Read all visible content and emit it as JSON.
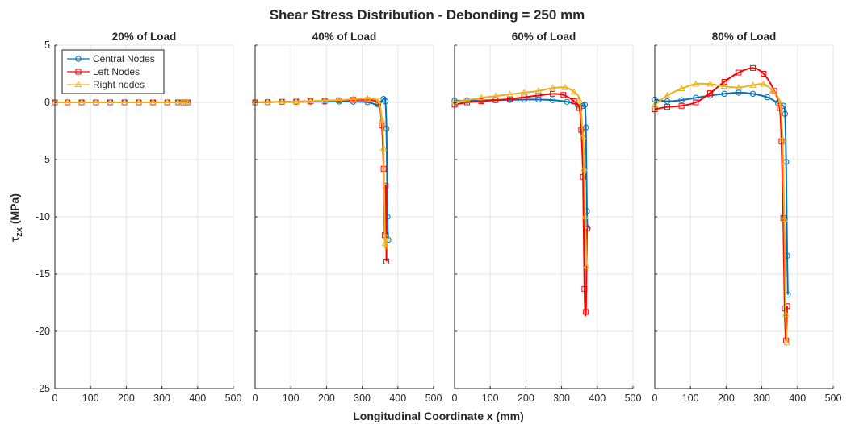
{
  "figure": {
    "title": "Shear Stress Distribution - Debonding = 250 mm",
    "xlabel": "Longitudinal Coordinate x (mm)",
    "ylabel_main": "τ",
    "ylabel_sub": "zx",
    "ylabel_unit": " (MPa)"
  },
  "legend": {
    "placement": "top-left of first panel",
    "items": [
      {
        "name": "Central Nodes",
        "color": "#0072BD",
        "marker": "circle"
      },
      {
        "name": "Left Nodes",
        "color": "#FF0000",
        "marker": "square"
      },
      {
        "name": "Right nodes",
        "color": "#EDB120",
        "marker": "triangle"
      }
    ]
  },
  "colors": {
    "central": "#0072BD",
    "left": "#FF0000",
    "right": "#EDB120",
    "grid": "#E6E6E6",
    "axis": "#262626"
  },
  "chart_data": [
    {
      "type": "line",
      "title": "20% of Load",
      "xlim": [
        0,
        500
      ],
      "ylim": [
        -25,
        5
      ],
      "xticks": [
        0,
        100,
        200,
        300,
        400,
        500
      ],
      "yticks": [
        -25,
        -20,
        -15,
        -10,
        -5,
        0,
        5
      ],
      "grid": true,
      "series": [
        {
          "name": "Central Nodes",
          "points": [
            [
              0,
              0
            ],
            [
              35,
              0
            ],
            [
              75,
              0
            ],
            [
              115,
              0
            ],
            [
              155,
              0
            ],
            [
              195,
              0
            ],
            [
              235,
              0
            ],
            [
              275,
              0
            ],
            [
              315,
              0
            ],
            [
              345,
              0
            ],
            [
              355,
              0
            ],
            [
              362,
              0
            ],
            [
              368,
              0
            ],
            [
              373,
              0
            ]
          ]
        },
        {
          "name": "Left Nodes",
          "points": [
            [
              0,
              0
            ],
            [
              35,
              0
            ],
            [
              75,
              0
            ],
            [
              115,
              0
            ],
            [
              155,
              0
            ],
            [
              195,
              0
            ],
            [
              235,
              0
            ],
            [
              275,
              0
            ],
            [
              315,
              0
            ],
            [
              345,
              0
            ],
            [
              355,
              0
            ],
            [
              362,
              0
            ],
            [
              368,
              0
            ],
            [
              373,
              0
            ]
          ]
        },
        {
          "name": "Right nodes",
          "points": [
            [
              0,
              0
            ],
            [
              35,
              0
            ],
            [
              75,
              0
            ],
            [
              115,
              0
            ],
            [
              155,
              0
            ],
            [
              195,
              0
            ],
            [
              235,
              0
            ],
            [
              275,
              0
            ],
            [
              315,
              0
            ],
            [
              345,
              0
            ],
            [
              355,
              0
            ],
            [
              362,
              0
            ],
            [
              368,
              0
            ],
            [
              373,
              0
            ]
          ]
        }
      ]
    },
    {
      "type": "line",
      "title": "40% of Load",
      "xlim": [
        0,
        500
      ],
      "ylim": [
        -25,
        5
      ],
      "xticks": [
        0,
        100,
        200,
        300,
        400,
        500
      ],
      "yticks": [
        -25,
        -20,
        -15,
        -10,
        -5,
        0,
        5
      ],
      "grid": true,
      "series": [
        {
          "name": "Central Nodes",
          "points": [
            [
              0,
              0
            ],
            [
              35,
              0.02
            ],
            [
              75,
              0.04
            ],
            [
              115,
              0.05
            ],
            [
              155,
              0.06
            ],
            [
              195,
              0.07
            ],
            [
              235,
              0.08
            ],
            [
              275,
              0.06
            ],
            [
              315,
              0.02
            ],
            [
              345,
              -0.2
            ],
            [
              360,
              0.3
            ],
            [
              365,
              0.1
            ],
            [
              368,
              -2.3
            ],
            [
              371,
              -10.0
            ],
            [
              373,
              -12.0
            ]
          ]
        },
        {
          "name": "Left Nodes",
          "points": [
            [
              0,
              0
            ],
            [
              35,
              0.02
            ],
            [
              75,
              0.05
            ],
            [
              115,
              0.07
            ],
            [
              155,
              0.1
            ],
            [
              195,
              0.14
            ],
            [
              235,
              0.18
            ],
            [
              275,
              0.22
            ],
            [
              315,
              0.2
            ],
            [
              345,
              -0.1
            ],
            [
              355,
              -2.0
            ],
            [
              360,
              -5.8
            ],
            [
              363,
              -11.6
            ],
            [
              366,
              -7.3
            ],
            [
              368,
              -13.9
            ]
          ]
        },
        {
          "name": "Right nodes",
          "points": [
            [
              0,
              0
            ],
            [
              35,
              0.02
            ],
            [
              75,
              0.05
            ],
            [
              115,
              0.08
            ],
            [
              155,
              0.12
            ],
            [
              195,
              0.16
            ],
            [
              235,
              0.2
            ],
            [
              275,
              0.28
            ],
            [
              315,
              0.32
            ],
            [
              345,
              0.1
            ],
            [
              355,
              -1.5
            ],
            [
              360,
              -4.0
            ],
            [
              364,
              -12.3
            ],
            [
              368,
              -11.8
            ]
          ]
        }
      ]
    },
    {
      "type": "line",
      "title": "60% of Load",
      "xlim": [
        0,
        500
      ],
      "ylim": [
        -25,
        5
      ],
      "xticks": [
        0,
        100,
        200,
        300,
        400,
        500
      ],
      "yticks": [
        -25,
        -20,
        -15,
        -10,
        -5,
        0,
        5
      ],
      "grid": true,
      "series": [
        {
          "name": "Central Nodes",
          "points": [
            [
              0,
              0.15
            ],
            [
              35,
              0.15
            ],
            [
              75,
              0.18
            ],
            [
              115,
              0.2
            ],
            [
              155,
              0.22
            ],
            [
              195,
              0.25
            ],
            [
              235,
              0.25
            ],
            [
              275,
              0.2
            ],
            [
              315,
              0.05
            ],
            [
              345,
              -0.2
            ],
            [
              360,
              -0.3
            ],
            [
              365,
              -0.2
            ],
            [
              368,
              -2.2
            ],
            [
              371,
              -9.5
            ],
            [
              373,
              -11.0
            ]
          ]
        },
        {
          "name": "Left Nodes",
          "points": [
            [
              0,
              -0.2
            ],
            [
              35,
              0.0
            ],
            [
              75,
              0.1
            ],
            [
              115,
              0.2
            ],
            [
              155,
              0.3
            ],
            [
              195,
              0.45
            ],
            [
              235,
              0.6
            ],
            [
              275,
              0.75
            ],
            [
              305,
              0.65
            ],
            [
              335,
              0.1
            ],
            [
              350,
              -0.5
            ],
            [
              355,
              -2.4
            ],
            [
              360,
              -6.5
            ],
            [
              364,
              -16.3
            ],
            [
              368,
              -18.3
            ],
            [
              371,
              -11.0
            ]
          ]
        },
        {
          "name": "Right nodes",
          "points": [
            [
              0,
              0.05
            ],
            [
              35,
              0.2
            ],
            [
              75,
              0.4
            ],
            [
              115,
              0.55
            ],
            [
              155,
              0.7
            ],
            [
              195,
              0.85
            ],
            [
              235,
              1.0
            ],
            [
              275,
              1.25
            ],
            [
              310,
              1.3
            ],
            [
              335,
              0.9
            ],
            [
              350,
              0.2
            ],
            [
              360,
              -3.0
            ],
            [
              363,
              -5.8
            ],
            [
              366,
              -10.0
            ],
            [
              370,
              -14.3
            ]
          ]
        }
      ]
    },
    {
      "type": "line",
      "title": "80% of Load",
      "xlim": [
        0,
        500
      ],
      "ylim": [
        -25,
        5
      ],
      "xticks": [
        0,
        100,
        200,
        300,
        400,
        500
      ],
      "yticks": [
        -25,
        -20,
        -15,
        -10,
        -5,
        0,
        5
      ],
      "grid": true,
      "series": [
        {
          "name": "Central Nodes",
          "points": [
            [
              0,
              0.25
            ],
            [
              35,
              0.1
            ],
            [
              75,
              0.2
            ],
            [
              115,
              0.4
            ],
            [
              155,
              0.6
            ],
            [
              195,
              0.75
            ],
            [
              235,
              0.85
            ],
            [
              275,
              0.75
            ],
            [
              315,
              0.45
            ],
            [
              345,
              -0.05
            ],
            [
              360,
              -0.3
            ],
            [
              365,
              -1.0
            ],
            [
              368,
              -5.2
            ],
            [
              371,
              -13.4
            ],
            [
              373,
              -16.8
            ]
          ]
        },
        {
          "name": "Left Nodes",
          "points": [
            [
              0,
              -0.6
            ],
            [
              35,
              -0.4
            ],
            [
              75,
              -0.3
            ],
            [
              115,
              0.0
            ],
            [
              155,
              0.8
            ],
            [
              195,
              1.8
            ],
            [
              235,
              2.6
            ],
            [
              275,
              3.0
            ],
            [
              305,
              2.5
            ],
            [
              335,
              1.0
            ],
            [
              350,
              -0.5
            ],
            [
              355,
              -3.4
            ],
            [
              360,
              -10.1
            ],
            [
              364,
              -18.0
            ],
            [
              368,
              -20.8
            ],
            [
              371,
              -17.8
            ]
          ]
        },
        {
          "name": "Right nodes",
          "points": [
            [
              0,
              -0.2
            ],
            [
              35,
              0.6
            ],
            [
              75,
              1.2
            ],
            [
              115,
              1.6
            ],
            [
              155,
              1.6
            ],
            [
              195,
              1.4
            ],
            [
              235,
              1.3
            ],
            [
              275,
              1.5
            ],
            [
              305,
              1.6
            ],
            [
              330,
              1.0
            ],
            [
              350,
              0.0
            ],
            [
              358,
              -3.2
            ],
            [
              363,
              -10.2
            ],
            [
              367,
              -18.5
            ],
            [
              371,
              -21.0
            ]
          ]
        }
      ]
    }
  ]
}
